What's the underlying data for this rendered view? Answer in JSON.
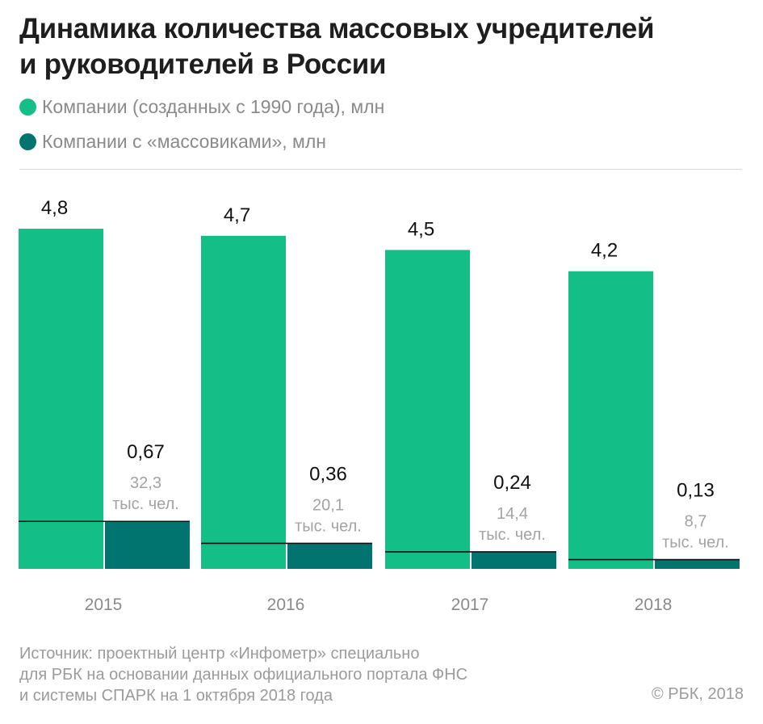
{
  "title_line1": "Динамика количества массовых учредителей",
  "title_line2": "и руководителей в России",
  "legend": [
    {
      "label": "Компании (созданных с 1990 года), млн",
      "color": "#14bf87"
    },
    {
      "label": "Компании с «массовиками», млн",
      "color": "#017470"
    }
  ],
  "source_lines": [
    "Источник: проектный центр «Инфометр» специально",
    "для РБК на основании данных официального портала ФНС",
    "и системы СПАРК на 1 октября 2018 года"
  ],
  "copyright": "© РБК, 2018",
  "chart_data": {
    "type": "bar",
    "categories": [
      "2015",
      "2016",
      "2017",
      "2018"
    ],
    "series": [
      {
        "name": "Компании (созданных с 1990 года), млн",
        "color": "#14bf87",
        "values": [
          4.8,
          4.7,
          4.5,
          4.2
        ],
        "labels": [
          "4,8",
          "4,7",
          "4,5",
          "4,2"
        ]
      },
      {
        "name": "Компании с «массовиками», млн",
        "color": "#017470",
        "values": [
          0.67,
          0.36,
          0.24,
          0.13
        ],
        "labels": [
          "0,67",
          "0,36",
          "0,24",
          "0,13"
        ]
      }
    ],
    "people_thousands": [
      32.3,
      20.1,
      14.4,
      8.7
    ],
    "people_labels": [
      "32,3",
      "20,1",
      "14,4",
      "8,7"
    ],
    "people_unit": "тыс. чел.",
    "ylim": [
      0,
      5.0
    ],
    "grid": false
  }
}
